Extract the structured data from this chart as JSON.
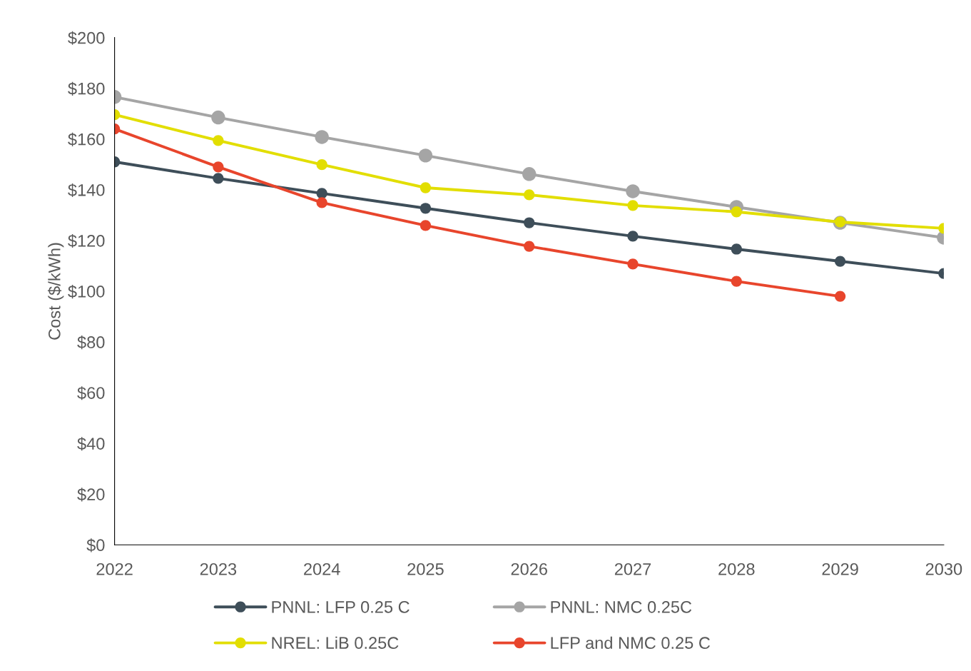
{
  "chart_data": {
    "type": "line",
    "ylabel": "Cost ($/kWh)",
    "categories": [
      "2022",
      "2023",
      "2024",
      "2025",
      "2026",
      "2027",
      "2028",
      "2029",
      "2030"
    ],
    "series": [
      {
        "name": "PNNL: LFP 0.25 C",
        "color": "#3e4e59",
        "values": [
          151,
          144.5,
          138.6,
          132.7,
          127,
          121.7,
          116.6,
          111.8,
          107
        ]
      },
      {
        "name": "PNNL: NMC 0.25C",
        "color": "#a5a5a5",
        "values": [
          176.6,
          168.5,
          160.8,
          153.5,
          146.2,
          139.4,
          133.2,
          127,
          121.1
        ]
      },
      {
        "name": "NREL: LiB 0.25C",
        "color": "#e2de00",
        "values": [
          169.6,
          159.4,
          149.9,
          140.8,
          138,
          133.8,
          131.3,
          127.3,
          124.8
        ]
      },
      {
        "name": "LFP and NMC 0.25 C",
        "color": "#e8452c",
        "values": [
          164,
          149,
          134.9,
          125.9,
          117.7,
          110.7,
          103.9,
          98,
          null
        ]
      }
    ],
    "ylim": [
      0,
      200
    ],
    "yticks": [
      {
        "value": 0,
        "label": "$0"
      },
      {
        "value": 20,
        "label": "$20"
      },
      {
        "value": 40,
        "label": "$40"
      },
      {
        "value": 60,
        "label": "$60"
      },
      {
        "value": 80,
        "label": "$80"
      },
      {
        "value": 100,
        "label": "$100"
      },
      {
        "value": 120,
        "label": "$120"
      },
      {
        "value": 140,
        "label": "$140"
      },
      {
        "value": 160,
        "label": "$160"
      },
      {
        "value": 180,
        "label": "$180"
      },
      {
        "value": 200,
        "label": "$200"
      }
    ],
    "marker": "circle",
    "line_style": "solid",
    "legend": "bottom",
    "grid": false
  }
}
